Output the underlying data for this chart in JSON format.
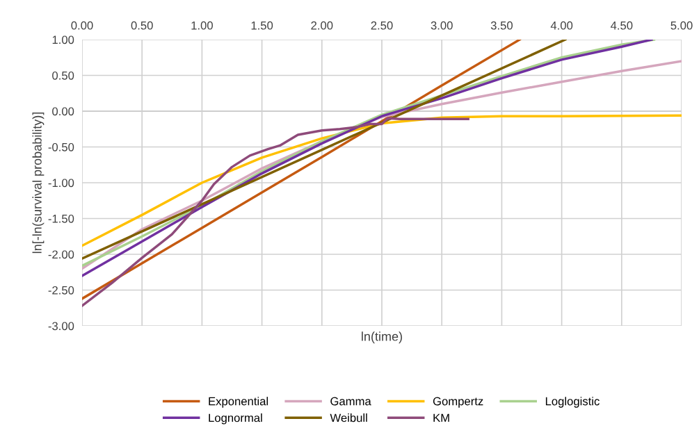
{
  "chart_data": {
    "type": "line",
    "xlabel": "ln(time)",
    "ylabel": "ln[-ln(survival probability)]",
    "xlim": [
      0,
      5
    ],
    "ylim": [
      -3,
      1
    ],
    "xticks": [
      {
        "value": 0,
        "label": "0.00"
      },
      {
        "value": 0.5,
        "label": "0.50"
      },
      {
        "value": 1,
        "label": "1.00"
      },
      {
        "value": 1.5,
        "label": "1.50"
      },
      {
        "value": 2,
        "label": "2.00"
      },
      {
        "value": 2.5,
        "label": "2.50"
      },
      {
        "value": 3,
        "label": "3.00"
      },
      {
        "value": 3.5,
        "label": "3.50"
      },
      {
        "value": 4,
        "label": "4.00"
      },
      {
        "value": 4.5,
        "label": "4.50"
      },
      {
        "value": 5,
        "label": "5.00"
      }
    ],
    "yticks": [
      {
        "value": 1,
        "label": "1.00"
      },
      {
        "value": 0.5,
        "label": "0.50"
      },
      {
        "value": 0,
        "label": "0.00"
      },
      {
        "value": -0.5,
        "label": "-0.50"
      },
      {
        "value": -1,
        "label": "-1.00"
      },
      {
        "value": -1.5,
        "label": "-1.50"
      },
      {
        "value": -2,
        "label": "-2.00"
      },
      {
        "value": -2.5,
        "label": "-2.50"
      },
      {
        "value": -3,
        "label": "-3.00"
      }
    ],
    "grid": true,
    "legend": "bottom",
    "marker": "none",
    "line_style": "solid",
    "series": [
      {
        "name": "Exponential",
        "color": "#c55a11",
        "x": [
          0,
          1,
          2,
          3,
          3.65
        ],
        "values": [
          -2.62,
          -1.63,
          -0.64,
          0.36,
          1.0
        ]
      },
      {
        "name": "Gamma",
        "color": "#d5a6bd",
        "x": [
          0,
          0.5,
          1,
          1.5,
          2,
          2.5,
          3,
          3.5,
          4,
          4.5,
          5
        ],
        "values": [
          -2.2,
          -1.65,
          -1.25,
          -0.8,
          -0.42,
          -0.08,
          0.1,
          0.26,
          0.41,
          0.56,
          0.7
        ]
      },
      {
        "name": "Gompertz",
        "color": "#ffc000",
        "x": [
          0,
          0.5,
          1,
          1.5,
          2,
          2.5,
          3,
          3.5,
          4,
          5
        ],
        "values": [
          -1.88,
          -1.45,
          -1.0,
          -0.65,
          -0.38,
          -0.17,
          -0.09,
          -0.07,
          -0.07,
          -0.06
        ]
      },
      {
        "name": "Loglogistic",
        "color": "#a9d18e",
        "x": [
          0,
          0.5,
          1,
          1.5,
          2,
          2.5,
          3,
          3.5,
          4,
          4.5,
          4.77
        ],
        "values": [
          -2.16,
          -1.75,
          -1.32,
          -0.84,
          -0.42,
          -0.05,
          0.22,
          0.49,
          0.75,
          0.93,
          1.0
        ]
      },
      {
        "name": "Lognormal",
        "color": "#7030a0",
        "x": [
          0,
          0.5,
          1,
          1.5,
          2,
          2.5,
          3,
          3.5,
          4,
          4.5,
          4.75
        ],
        "values": [
          -2.3,
          -1.82,
          -1.34,
          -0.87,
          -0.45,
          -0.07,
          0.18,
          0.46,
          0.72,
          0.9,
          1.0
        ]
      },
      {
        "name": "Weibull",
        "color": "#7f6000",
        "x": [
          0,
          1,
          2,
          3,
          4.03
        ],
        "values": [
          -2.06,
          -1.3,
          -0.54,
          0.22,
          1.0
        ]
      },
      {
        "name": "KM",
        "color": "#8e4a7a",
        "x": [
          0,
          0.25,
          0.5,
          0.75,
          1.0,
          1.1,
          1.25,
          1.4,
          1.55,
          1.65,
          1.8,
          2.0,
          2.15,
          2.3,
          2.4,
          2.5,
          2.55,
          2.65,
          3.0,
          3.22
        ],
        "values": [
          -2.72,
          -2.4,
          -2.05,
          -1.72,
          -1.25,
          -1.02,
          -0.78,
          -0.62,
          -0.53,
          -0.48,
          -0.33,
          -0.27,
          -0.25,
          -0.22,
          -0.18,
          -0.18,
          -0.1,
          -0.11,
          -0.11,
          -0.11
        ]
      }
    ]
  }
}
